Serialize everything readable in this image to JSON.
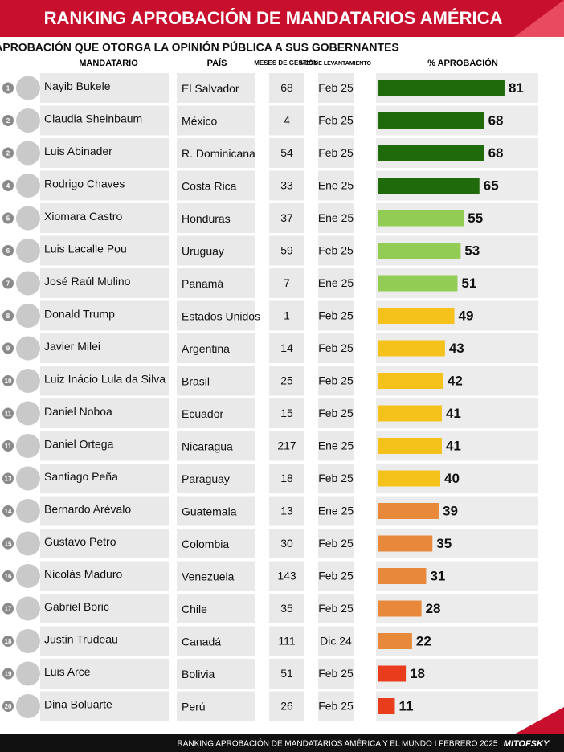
{
  "chart_data": {
    "type": "bar",
    "title": "RANKING APROBACIÓN DE MANDATARIOS AMÉRICA",
    "subtitle": "APROBACIÓN QUE OTORGA LA OPINIÓN PÚBLICA A SUS GOBERNANTES",
    "column_headers": [
      "MANDATARIO",
      "PAÍS",
      "MESES DE GESTIÓN",
      "MES DE LEVANTAMIENTO",
      "% APROBACIÓN"
    ],
    "ranks": [
      1,
      2,
      2,
      4,
      5,
      6,
      7,
      8,
      9,
      10,
      11,
      11,
      13,
      14,
      15,
      16,
      17,
      18,
      19,
      20
    ],
    "categories": [
      "Nayib Bukele",
      "Claudia Sheinbaum",
      "Luis Abinader",
      "Rodrigo Chaves",
      "Xiomara Castro",
      "Luis Lacalle Pou",
      "José Raúl Mulino",
      "Donald Trump",
      "Javier Milei",
      "Luiz Inácio Lula da Silva",
      "Daniel Noboa",
      "Daniel Ortega",
      "Santiago Peña",
      "Bernardo Arévalo",
      "Gustavo Petro",
      "Nicolás Maduro",
      "Gabriel Boric",
      "Justin Trudeau",
      "Luis Arce",
      "Dina Boluarte"
    ],
    "countries": [
      "El Salvador",
      "México",
      "R. Dominicana",
      "Costa Rica",
      "Honduras",
      "Uruguay",
      "Panamá",
      "Estados Unidos",
      "Argentina",
      "Brasil",
      "Ecuador",
      "Nicaragua",
      "Paraguay",
      "Guatemala",
      "Colombia",
      "Venezuela",
      "Chile",
      "Canadá",
      "Bolivia",
      "Perú"
    ],
    "months_in_office": [
      68,
      4,
      54,
      33,
      37,
      59,
      7,
      1,
      14,
      25,
      15,
      217,
      18,
      13,
      30,
      143,
      35,
      111,
      51,
      26
    ],
    "survey_month": [
      "Feb 25",
      "Feb 25",
      "Feb 25",
      "Ene 25",
      "Ene 25",
      "Feb 25",
      "Ene 25",
      "Feb 25",
      "Feb 25",
      "Feb 25",
      "Feb 25",
      "Ene 25",
      "Feb 25",
      "Ene 25",
      "Feb 25",
      "Feb 25",
      "Feb 25",
      "Dic 24",
      "Feb 25",
      "Feb 25"
    ],
    "values": [
      81,
      68,
      68,
      65,
      55,
      53,
      51,
      49,
      43,
      42,
      41,
      41,
      40,
      39,
      35,
      31,
      28,
      22,
      18,
      11
    ],
    "colors": [
      "#1f6a0b",
      "#1f6a0b",
      "#1f6a0b",
      "#1f6a0b",
      "#93cc55",
      "#93cc55",
      "#93cc55",
      "#f5c21c",
      "#f5c21c",
      "#f5c21c",
      "#f5c21c",
      "#f5c21c",
      "#f5c21c",
      "#e8883a",
      "#e8883a",
      "#e8883a",
      "#e8883a",
      "#e8883a",
      "#e93c1c",
      "#e93c1c"
    ],
    "footer": "RANKING APROBACIÓN DE MANDATARIOS AMÉRICA Y EL MUNDO I FEBRERO 2025",
    "brand": "MITOFSKY"
  }
}
